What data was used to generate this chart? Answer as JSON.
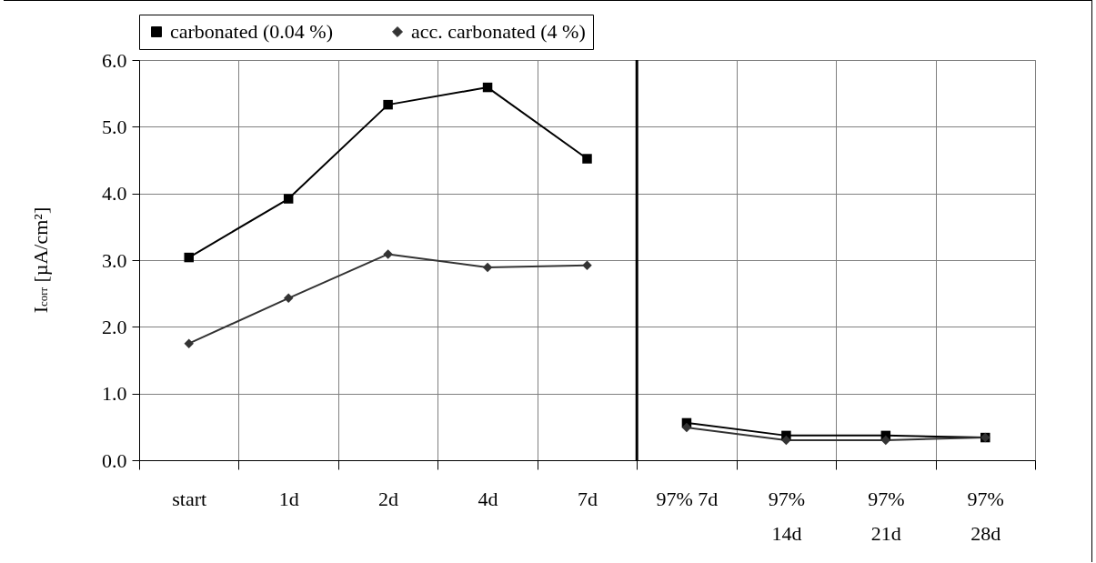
{
  "chart_data": {
    "type": "line",
    "ylabel": "I$_{corr}$ [µA/cm²]",
    "categories": [
      "start",
      "1d",
      "2d",
      "4d",
      "7d",
      "97% 7d",
      "97% 14d",
      "97% 21d",
      "97% 28d"
    ],
    "series": [
      {
        "name": "carbonated (0.04 %)",
        "color": "#000000",
        "marker": "square",
        "values": [
          3.04,
          3.92,
          5.33,
          5.59,
          4.52,
          0.56,
          0.37,
          0.37,
          0.34
        ]
      },
      {
        "name": "acc. carbonated (4 %)",
        "color": "#333333",
        "marker": "diamond",
        "values": [
          1.75,
          2.43,
          3.09,
          2.89,
          2.92,
          0.49,
          0.3,
          0.3,
          0.34
        ]
      }
    ],
    "ylim": [
      0,
      6
    ],
    "yticks": [
      {
        "value": 0,
        "label": "0.0"
      },
      {
        "value": 1,
        "label": "1.0"
      },
      {
        "value": 2,
        "label": "2.0"
      },
      {
        "value": 3,
        "label": "3.0"
      },
      {
        "value": 4,
        "label": "4.0"
      },
      {
        "value": 5,
        "label": "5.0"
      },
      {
        "value": 6,
        "label": "6.0"
      }
    ],
    "ref_lines": [
      {
        "axis": "x",
        "value": "97% 7d",
        "color": "#000000"
      }
    ],
    "grid": true,
    "legend": "top",
    "line_style": "solid"
  }
}
